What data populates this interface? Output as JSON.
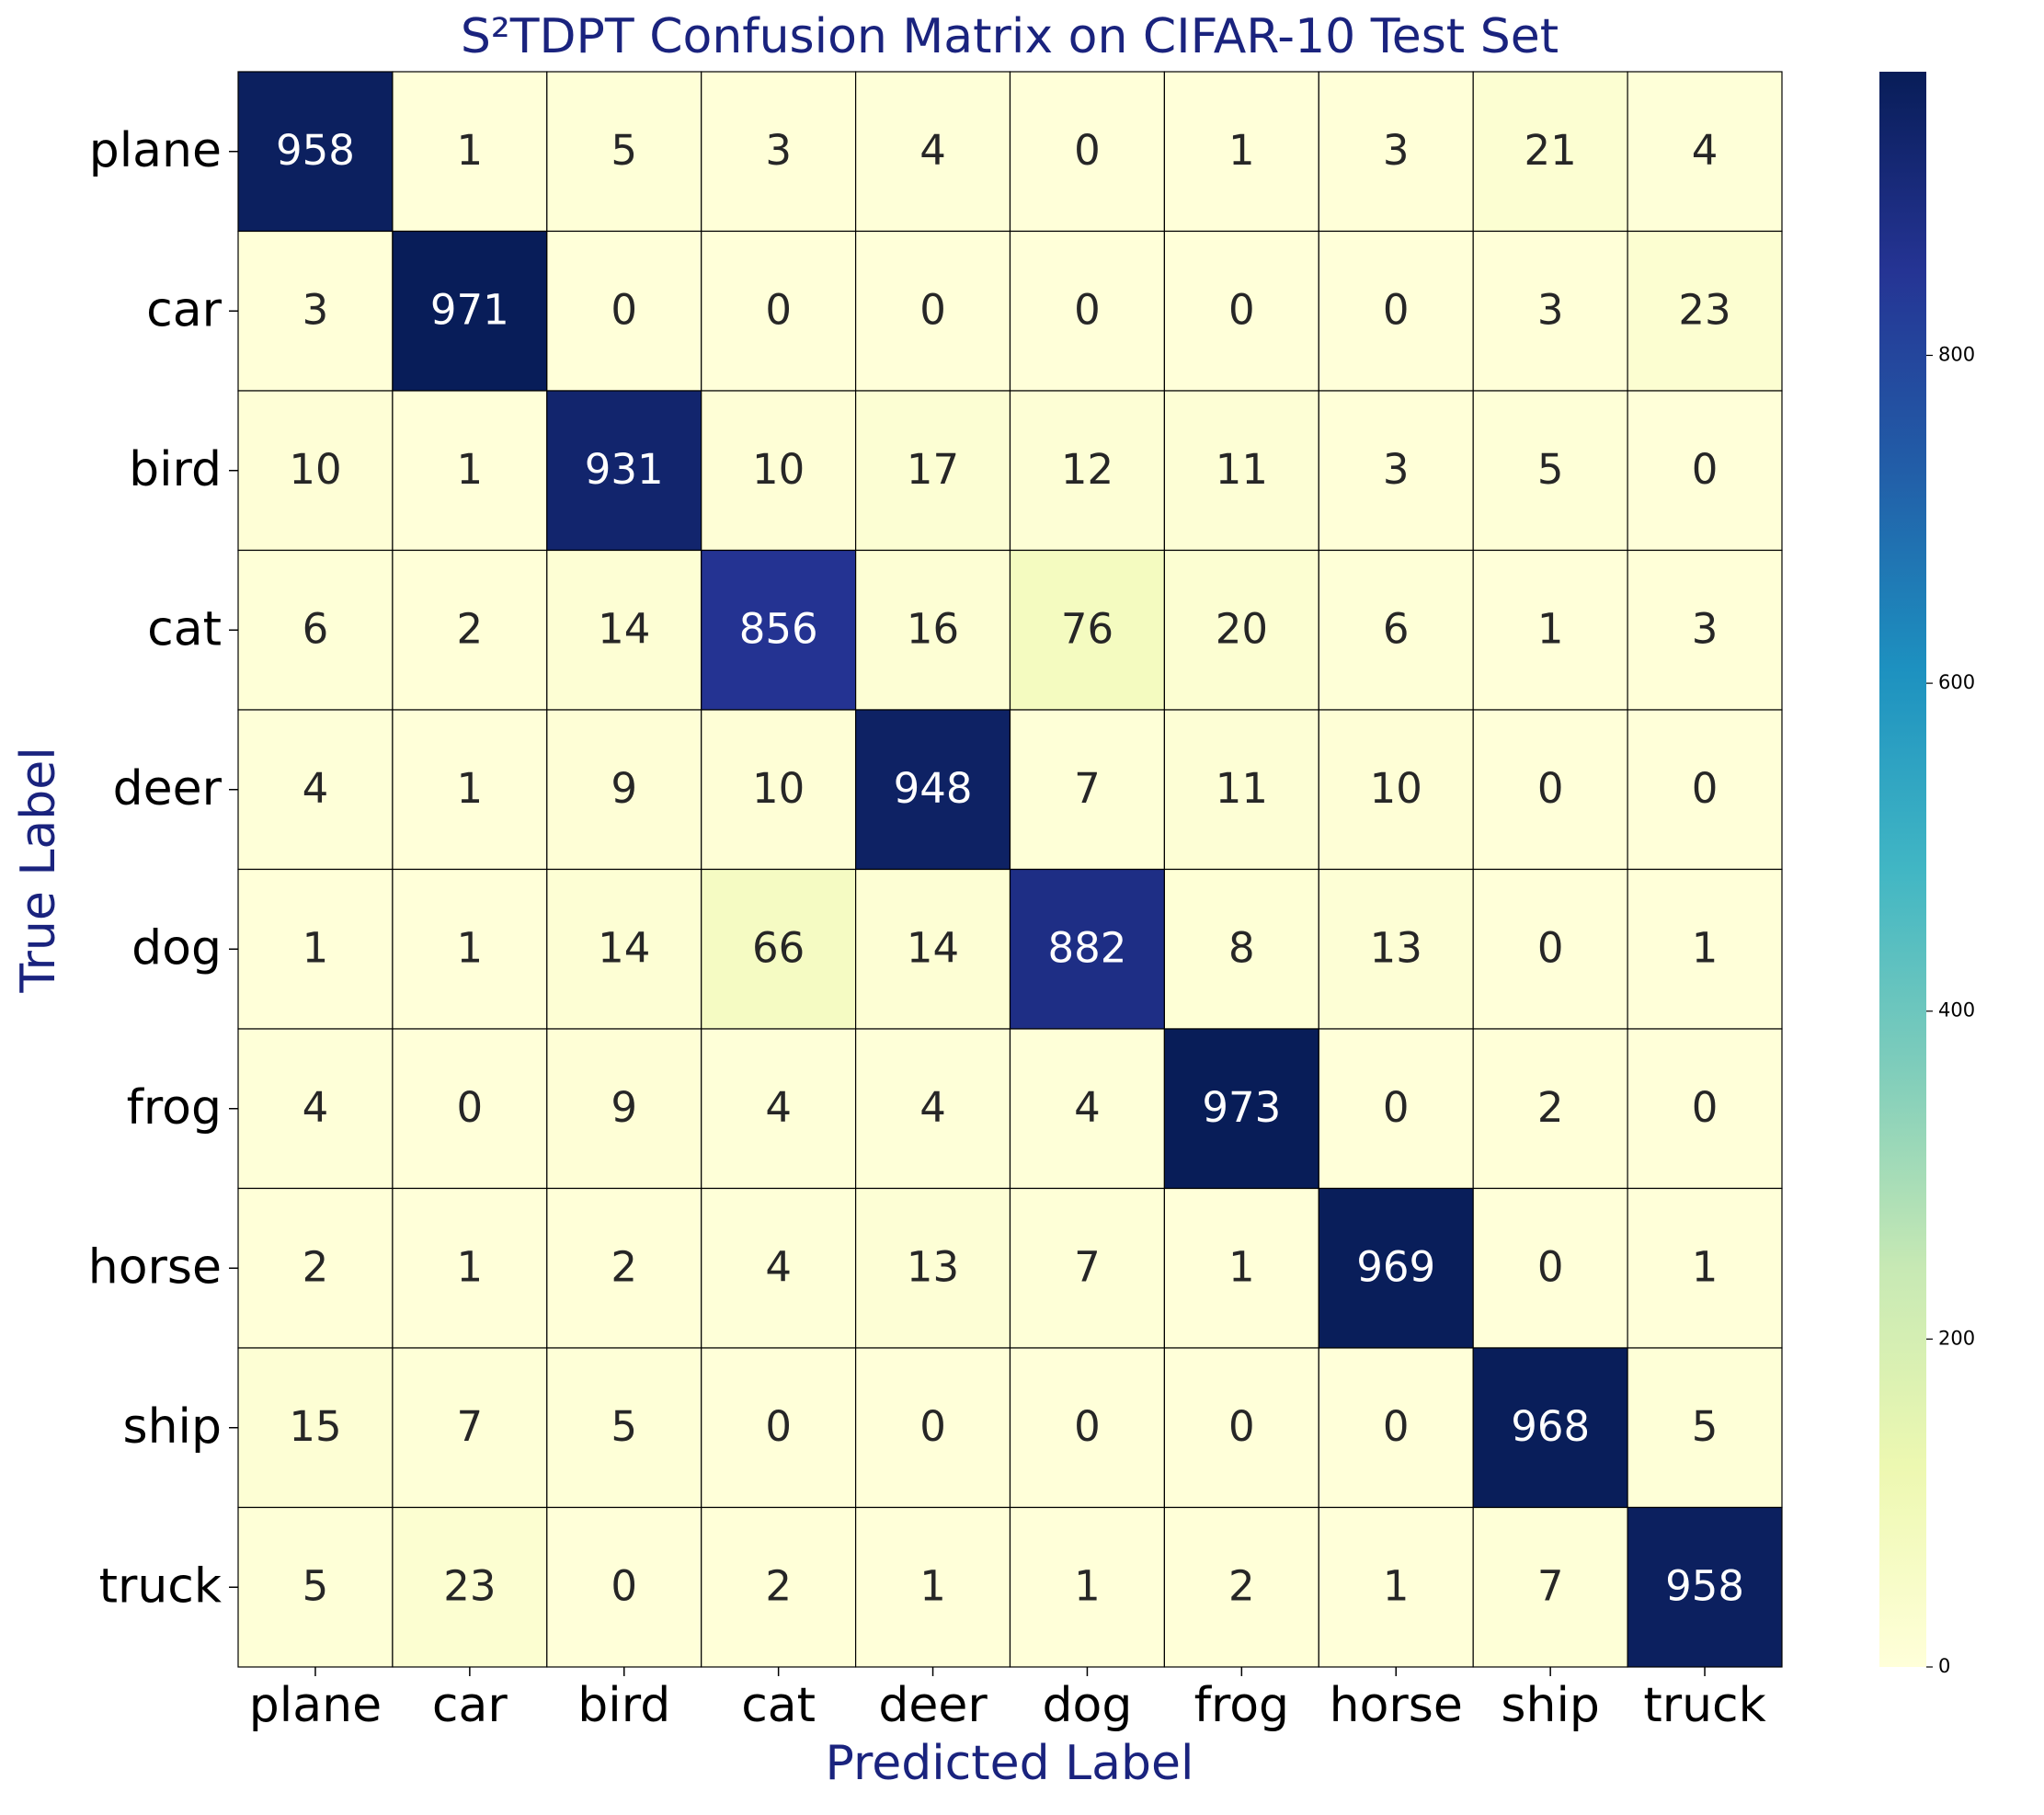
{
  "chart_data": {
    "type": "heatmap",
    "title": "S²TDPT Confusion Matrix on CIFAR-10 Test Set",
    "x_label": "Predicted Label",
    "y_label": "True Label",
    "x_categories": [
      "plane",
      "car",
      "bird",
      "cat",
      "deer",
      "dog",
      "frog",
      "horse",
      "ship",
      "truck"
    ],
    "y_categories": [
      "plane",
      "car",
      "bird",
      "cat",
      "deer",
      "dog",
      "frog",
      "horse",
      "ship",
      "truck"
    ],
    "values": [
      [
        958,
        1,
        5,
        3,
        4,
        0,
        1,
        3,
        21,
        4
      ],
      [
        3,
        971,
        0,
        0,
        0,
        0,
        0,
        0,
        3,
        23
      ],
      [
        10,
        1,
        931,
        10,
        17,
        12,
        11,
        3,
        5,
        0
      ],
      [
        6,
        2,
        14,
        856,
        16,
        76,
        20,
        6,
        1,
        3
      ],
      [
        4,
        1,
        9,
        10,
        948,
        7,
        11,
        10,
        0,
        0
      ],
      [
        1,
        1,
        14,
        66,
        14,
        882,
        8,
        13,
        0,
        1
      ],
      [
        4,
        0,
        9,
        4,
        4,
        4,
        973,
        0,
        2,
        0
      ],
      [
        2,
        1,
        2,
        4,
        13,
        7,
        1,
        969,
        0,
        1
      ],
      [
        15,
        7,
        5,
        0,
        0,
        0,
        0,
        0,
        968,
        5
      ],
      [
        5,
        23,
        0,
        2,
        1,
        1,
        2,
        1,
        7,
        958
      ]
    ],
    "colormap": [
      "#ffffd9",
      "#edf8b1",
      "#c7e9b4",
      "#7fcdbb",
      "#41b6c4",
      "#1d91c0",
      "#225ea8",
      "#253494",
      "#081d58"
    ],
    "clim": [
      0,
      973
    ],
    "colorbar_ticks": [
      0,
      200,
      400,
      600,
      800
    ],
    "title_color": "#1a237e"
  }
}
